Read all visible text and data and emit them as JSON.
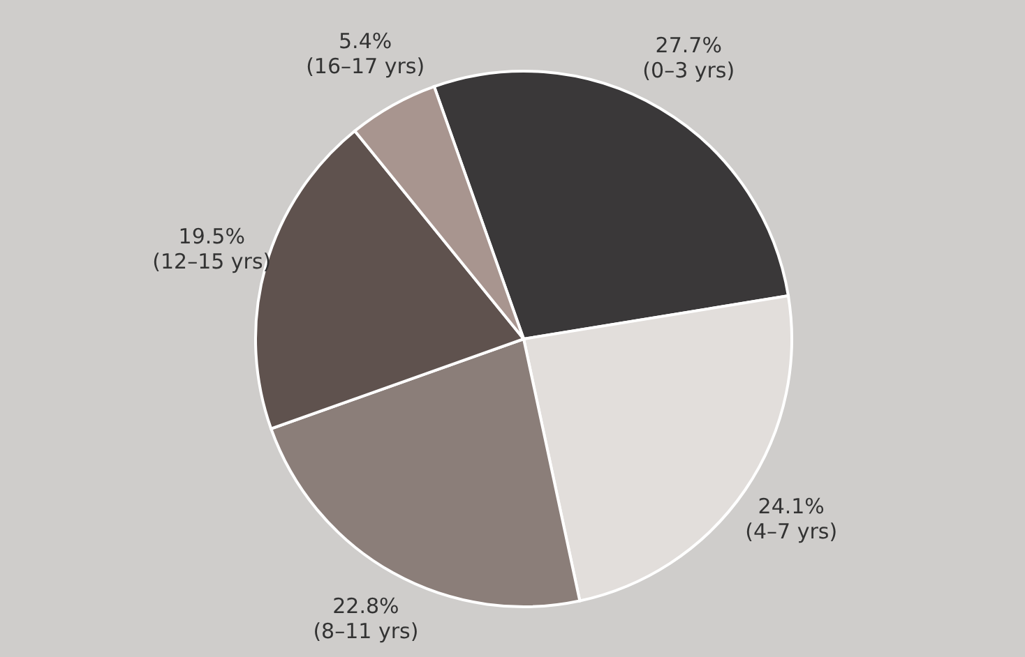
{
  "chart_data": {
    "type": "pie",
    "categories": [
      "(0–3 yrs)",
      "(4–7 yrs)",
      "(8–11 yrs)",
      "(12–15 yrs)",
      "(16–17 yrs)"
    ],
    "values": [
      27.7,
      24.1,
      22.8,
      19.5,
      5.4
    ],
    "value_labels": [
      "27.7%",
      "24.1%",
      "22.8%",
      "19.5%",
      "5.4%"
    ],
    "colors": [
      "#3a3839",
      "#e2dedb",
      "#8b7e79",
      "#5f524e",
      "#a8958f"
    ],
    "legend": false
  }
}
